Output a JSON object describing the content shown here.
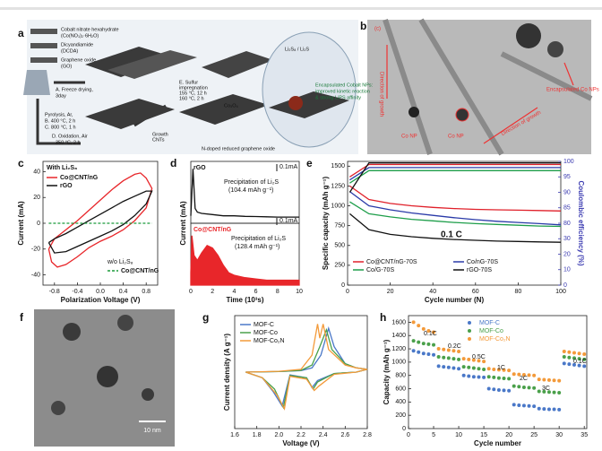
{
  "images": [
    {
      "label": "a",
      "texts": [
        "Cobalt nitrate hexahydrate",
        "(Co(NO₃)₂·6H₂O)",
        "Dicyandiamide",
        "(DCDA)",
        "Graphene oxide",
        "(GO)",
        "A. Freeze drying,",
        "3day",
        "Pyrolysis, Ar,",
        "B. 400 °C, 2 h",
        "C. 800 °C, 1 h",
        "D. Oxidation, Air",
        "350 °C, 2 h",
        "E. Sulfur",
        "impregnation",
        "155 °C, 12 h",
        "160 °C, 2 h",
        "Growth",
        "CNTs",
        "Co₃O₄",
        "N-doped reduced graphene oxide",
        "Li₂S₈ / Li₂S",
        "Encapsulated Cobalt NPs:",
        "improved kinetic reaction",
        "& strong LiPS affinity"
      ]
    },
    {
      "label": "b",
      "texts": [
        "(c)",
        "Direction of growth",
        "Encapsulated Co NPs",
        "Co NP",
        "Co NP",
        "Direction of growth"
      ]
    },
    {
      "label": "f",
      "texts": [
        "10 nm"
      ]
    }
  ],
  "chart_data": [
    {
      "type": "line",
      "label": "c",
      "xlabel": "Polarization Voltage (V)",
      "ylabel": "Current (mA)",
      "xlim": [
        -1,
        1
      ],
      "ylim": [
        -48,
        48
      ],
      "xticks": [
        -0.8,
        -0.4,
        {
          "value": 0,
          "label": "0.0"
        },
        0.4,
        0.8
      ],
      "yticks": [
        -40,
        -20,
        0,
        20,
        40
      ],
      "legend": "upper left",
      "annotations": [
        "With Li₂S₈",
        "w/o Li₂S₈"
      ],
      "series": [
        {
          "name": "Co@CNT/nG",
          "color": "#e8262a",
          "x": [
            -0.9,
            -0.8,
            -0.6,
            -0.4,
            -0.2,
            0,
            0.2,
            0.4,
            0.6,
            0.7,
            0.8,
            0.9,
            0.8,
            0.6,
            0.4,
            0.2,
            0,
            -0.2,
            -0.4,
            -0.6,
            -0.75,
            -0.85,
            -0.9
          ],
          "values": [
            -20,
            -12,
            -5,
            2,
            10,
            18,
            26,
            33,
            38,
            39,
            35,
            27,
            12,
            2,
            -5,
            -10,
            -14,
            -19,
            -26,
            -32,
            -34,
            -30,
            -20
          ]
        },
        {
          "name": "rGO",
          "color": "#111111",
          "x": [
            -0.9,
            -0.8,
            -0.6,
            -0.4,
            -0.2,
            0,
            0.2,
            0.4,
            0.6,
            0.8,
            0.9,
            0.8,
            0.6,
            0.4,
            0.2,
            0,
            -0.2,
            -0.4,
            -0.6,
            -0.8,
            -0.9
          ],
          "values": [
            -15,
            -12,
            -8,
            -3,
            2,
            7,
            12,
            17,
            21,
            25,
            25,
            15,
            6,
            -1,
            -6,
            -10,
            -14,
            -18,
            -22,
            -23,
            -15
          ]
        },
        {
          "name": "Co@CNT/nG",
          "color": "#1a9a3a",
          "dash": true,
          "legend": "lower right",
          "x": [
            -0.9,
            0.9
          ],
          "values": [
            0,
            0
          ]
        }
      ]
    },
    {
      "type": "line",
      "label": "d",
      "stacked": true,
      "xlabel": "Time (10³s)",
      "ylabel": "Current (mA)",
      "xlim": [
        0,
        10
      ],
      "xticks": [
        0,
        2,
        4,
        6,
        8,
        10
      ],
      "annotations": [
        "0.1mA",
        "Precipitation of Li₂S",
        "(104.4 mAh g⁻¹)",
        "0.1mA",
        "Precipitation of Li₂S",
        "(128.4 mAh g⁻¹)"
      ],
      "series": [
        {
          "name": "rGO",
          "color": "#111111",
          "ylim": [
            0,
            0.25
          ],
          "x": [
            0,
            0.2,
            0.4,
            0.6,
            1,
            2,
            3,
            4,
            5,
            6,
            7,
            8,
            9,
            10
          ],
          "values": [
            0.03,
            0.22,
            0.06,
            0.045,
            0.04,
            0.035,
            0.03,
            0.03,
            0.028,
            0.027,
            0.026,
            0.025,
            0.025,
            0.025
          ]
        },
        {
          "name": "Co@CNT/nG",
          "color": "#e8262a",
          "area": true,
          "ylim": [
            0,
            0.25
          ],
          "x": [
            0,
            0.1,
            0.3,
            0.6,
            1,
            1.5,
            2,
            2.5,
            3,
            3.5,
            4,
            5,
            6,
            7,
            8,
            9,
            10
          ],
          "values": [
            0.05,
            0.2,
            0.12,
            0.1,
            0.13,
            0.16,
            0.15,
            0.12,
            0.08,
            0.05,
            0.04,
            0.03,
            0.025,
            0.02,
            0.02,
            0.02,
            0.02
          ]
        }
      ]
    },
    {
      "type": "line",
      "label": "e",
      "xlabel": "Cycle number (N)",
      "ylabel": "Specific capacity (mAh g⁻¹)",
      "y2label": "Coulombic efficiency (%)",
      "y2color": "#3a3ab0",
      "xlim": [
        0,
        100
      ],
      "xticks": [
        0,
        20,
        40,
        60,
        80,
        100
      ],
      "ylim": [
        0,
        1560
      ],
      "yticks": [
        0,
        250,
        500,
        750,
        1000,
        1250,
        1500
      ],
      "y2lim": [
        0,
        100
      ],
      "y2ticks": [
        0,
        10,
        20,
        30,
        80,
        85,
        90,
        95,
        100
      ],
      "y2_broken": true,
      "legend": "lower left",
      "legend_columns": 2,
      "annotations": [
        "0.1 C"
      ],
      "x": [
        1,
        10,
        20,
        30,
        40,
        50,
        60,
        70,
        80,
        90,
        100
      ],
      "series": [
        {
          "name": "Co@CNT/nG-70S",
          "color": "#e0202a",
          "values": [
            1250,
            1080,
            1030,
            1000,
            980,
            965,
            955,
            950,
            945,
            940,
            935
          ]
        },
        {
          "name": "Co/nG-70S",
          "color": "#2a3aa8",
          "values": [
            1180,
            1000,
            950,
            910,
            880,
            850,
            825,
            805,
            790,
            775,
            760
          ]
        },
        {
          "name": "Co/G-70S",
          "color": "#1e9e4a",
          "values": [
            1050,
            900,
            860,
            830,
            810,
            790,
            775,
            765,
            755,
            745,
            740
          ]
        },
        {
          "name": "rGO-70S",
          "color": "#111111",
          "values": [
            900,
            700,
            640,
            610,
            590,
            575,
            565,
            555,
            550,
            545,
            540
          ]
        },
        {
          "color": "#e0202a",
          "axis": "y2",
          "values": [
            95,
            99,
            99,
            99,
            99,
            99,
            99,
            99,
            99,
            99,
            99
          ]
        },
        {
          "color": "#2a3aa8",
          "axis": "y2",
          "values": [
            94,
            98,
            98,
            98,
            98,
            98,
            98,
            98,
            98,
            98,
            98
          ]
        },
        {
          "color": "#1e9e4a",
          "axis": "y2",
          "values": [
            93,
            97,
            97,
            97,
            97,
            97,
            97,
            97,
            97,
            97,
            97
          ]
        },
        {
          "color": "#111111",
          "axis": "y2",
          "values": [
            90,
            99.5,
            99.5,
            99.5,
            99.5,
            99.5,
            99.5,
            99.5,
            99.5,
            99.5,
            99.5
          ]
        }
      ]
    },
    {
      "type": "line",
      "label": "g",
      "xlabel": "Voltage (V)",
      "ylabel": "Current density (A g⁻¹)",
      "xlim": [
        1.6,
        2.8
      ],
      "ylim": [
        -2,
        2
      ],
      "xticks": [
        1.6,
        1.8,
        {
          "value": 2,
          "label": "2.0"
        },
        2.2,
        2.4,
        2.6,
        2.8
      ],
      "legend": "upper left",
      "series": [
        {
          "name": "MOF-C",
          "color": "#4a78c8",
          "x": [
            1.7,
            2.0,
            2.2,
            2.3,
            2.38,
            2.45,
            2.5,
            2.6,
            2.7,
            2.8,
            2.7,
            2.5,
            2.35,
            2.3,
            2.25,
            2.1,
            2.03,
            1.95,
            1.85,
            1.7
          ],
          "values": [
            0,
            0.02,
            0.05,
            0.15,
            0.6,
            1.55,
            0.9,
            0.3,
            0.15,
            0.1,
            0,
            -0.05,
            -0.3,
            -0.55,
            -0.2,
            -0.1,
            -1.2,
            -0.7,
            -0.2,
            0
          ]
        },
        {
          "name": "MOF-Co",
          "color": "#4aa04a",
          "x": [
            1.7,
            2.0,
            2.2,
            2.3,
            2.37,
            2.43,
            2.48,
            2.6,
            2.7,
            2.8,
            2.7,
            2.5,
            2.35,
            2.31,
            2.25,
            2.1,
            2.04,
            1.96,
            1.85,
            1.7
          ],
          "values": [
            0,
            0.02,
            0.06,
            0.25,
            0.9,
            1.5,
            0.8,
            0.3,
            0.15,
            0.1,
            0,
            -0.05,
            -0.35,
            -0.6,
            -0.2,
            -0.12,
            -1.25,
            -0.6,
            -0.2,
            0
          ]
        },
        {
          "name": "MOF-Co₂N",
          "color": "#f39a3a",
          "x": [
            1.7,
            2.0,
            2.2,
            2.3,
            2.35,
            2.37,
            2.4,
            2.45,
            2.6,
            2.7,
            2.8,
            2.7,
            2.5,
            2.36,
            2.32,
            2.25,
            2.1,
            2.05,
            1.98,
            1.85,
            1.7
          ],
          "values": [
            0,
            0.03,
            0.1,
            0.6,
            1.7,
            1.2,
            1.7,
            0.8,
            0.25,
            0.15,
            0.1,
            0,
            -0.08,
            -0.5,
            -0.65,
            -0.25,
            -0.15,
            -1.3,
            -0.8,
            -0.2,
            0
          ]
        }
      ]
    },
    {
      "type": "scatter",
      "label": "h",
      "xlabel": "Cycle number",
      "ylabel": "Capacity (mAh g⁻¹)",
      "xlim": [
        0,
        35.5
      ],
      "ylim": [
        0,
        1700
      ],
      "xticks": [
        0,
        5,
        10,
        15,
        20,
        25,
        30,
        35
      ],
      "yticks": [
        0,
        200,
        400,
        600,
        800,
        1000,
        1200,
        1400,
        1600
      ],
      "legend": "upper center",
      "annotations": [
        "0.1C",
        "0.2C",
        "0.5C",
        "1C",
        "2C",
        "3C",
        "0.1C"
      ],
      "x": [
        1,
        2,
        3,
        4,
        5,
        6,
        7,
        8,
        9,
        10,
        11,
        12,
        13,
        14,
        15,
        16,
        17,
        18,
        19,
        20,
        21,
        22,
        23,
        24,
        25,
        26,
        27,
        28,
        29,
        30,
        31,
        32,
        33,
        34,
        35
      ],
      "series": [
        {
          "name": "MOF-C",
          "color": "#4a78c8",
          "values": [
            1170,
            1150,
            1130,
            1120,
            1110,
            940,
            930,
            920,
            910,
            900,
            800,
            790,
            780,
            775,
            770,
            600,
            590,
            580,
            575,
            570,
            360,
            350,
            345,
            340,
            335,
            300,
            295,
            290,
            290,
            285,
            980,
            970,
            960,
            950,
            940
          ]
        },
        {
          "name": "MOF-Co",
          "color": "#4aa04a",
          "values": [
            1320,
            1300,
            1280,
            1270,
            1260,
            1080,
            1070,
            1060,
            1050,
            1040,
            930,
            920,
            910,
            900,
            890,
            780,
            770,
            760,
            755,
            750,
            640,
            630,
            620,
            615,
            610,
            560,
            555,
            550,
            545,
            540,
            1080,
            1070,
            1060,
            1050,
            1040
          ]
        },
        {
          "name": "MOF-Co₂N",
          "color": "#f39a3a",
          "values": [
            1600,
            1550,
            1500,
            1470,
            1450,
            1200,
            1190,
            1180,
            1170,
            1160,
            1050,
            1040,
            1030,
            1020,
            1010,
            900,
            890,
            885,
            880,
            875,
            820,
            815,
            810,
            805,
            800,
            740,
            735,
            730,
            725,
            720,
            1160,
            1150,
            1140,
            1130,
            1120
          ]
        }
      ]
    }
  ]
}
